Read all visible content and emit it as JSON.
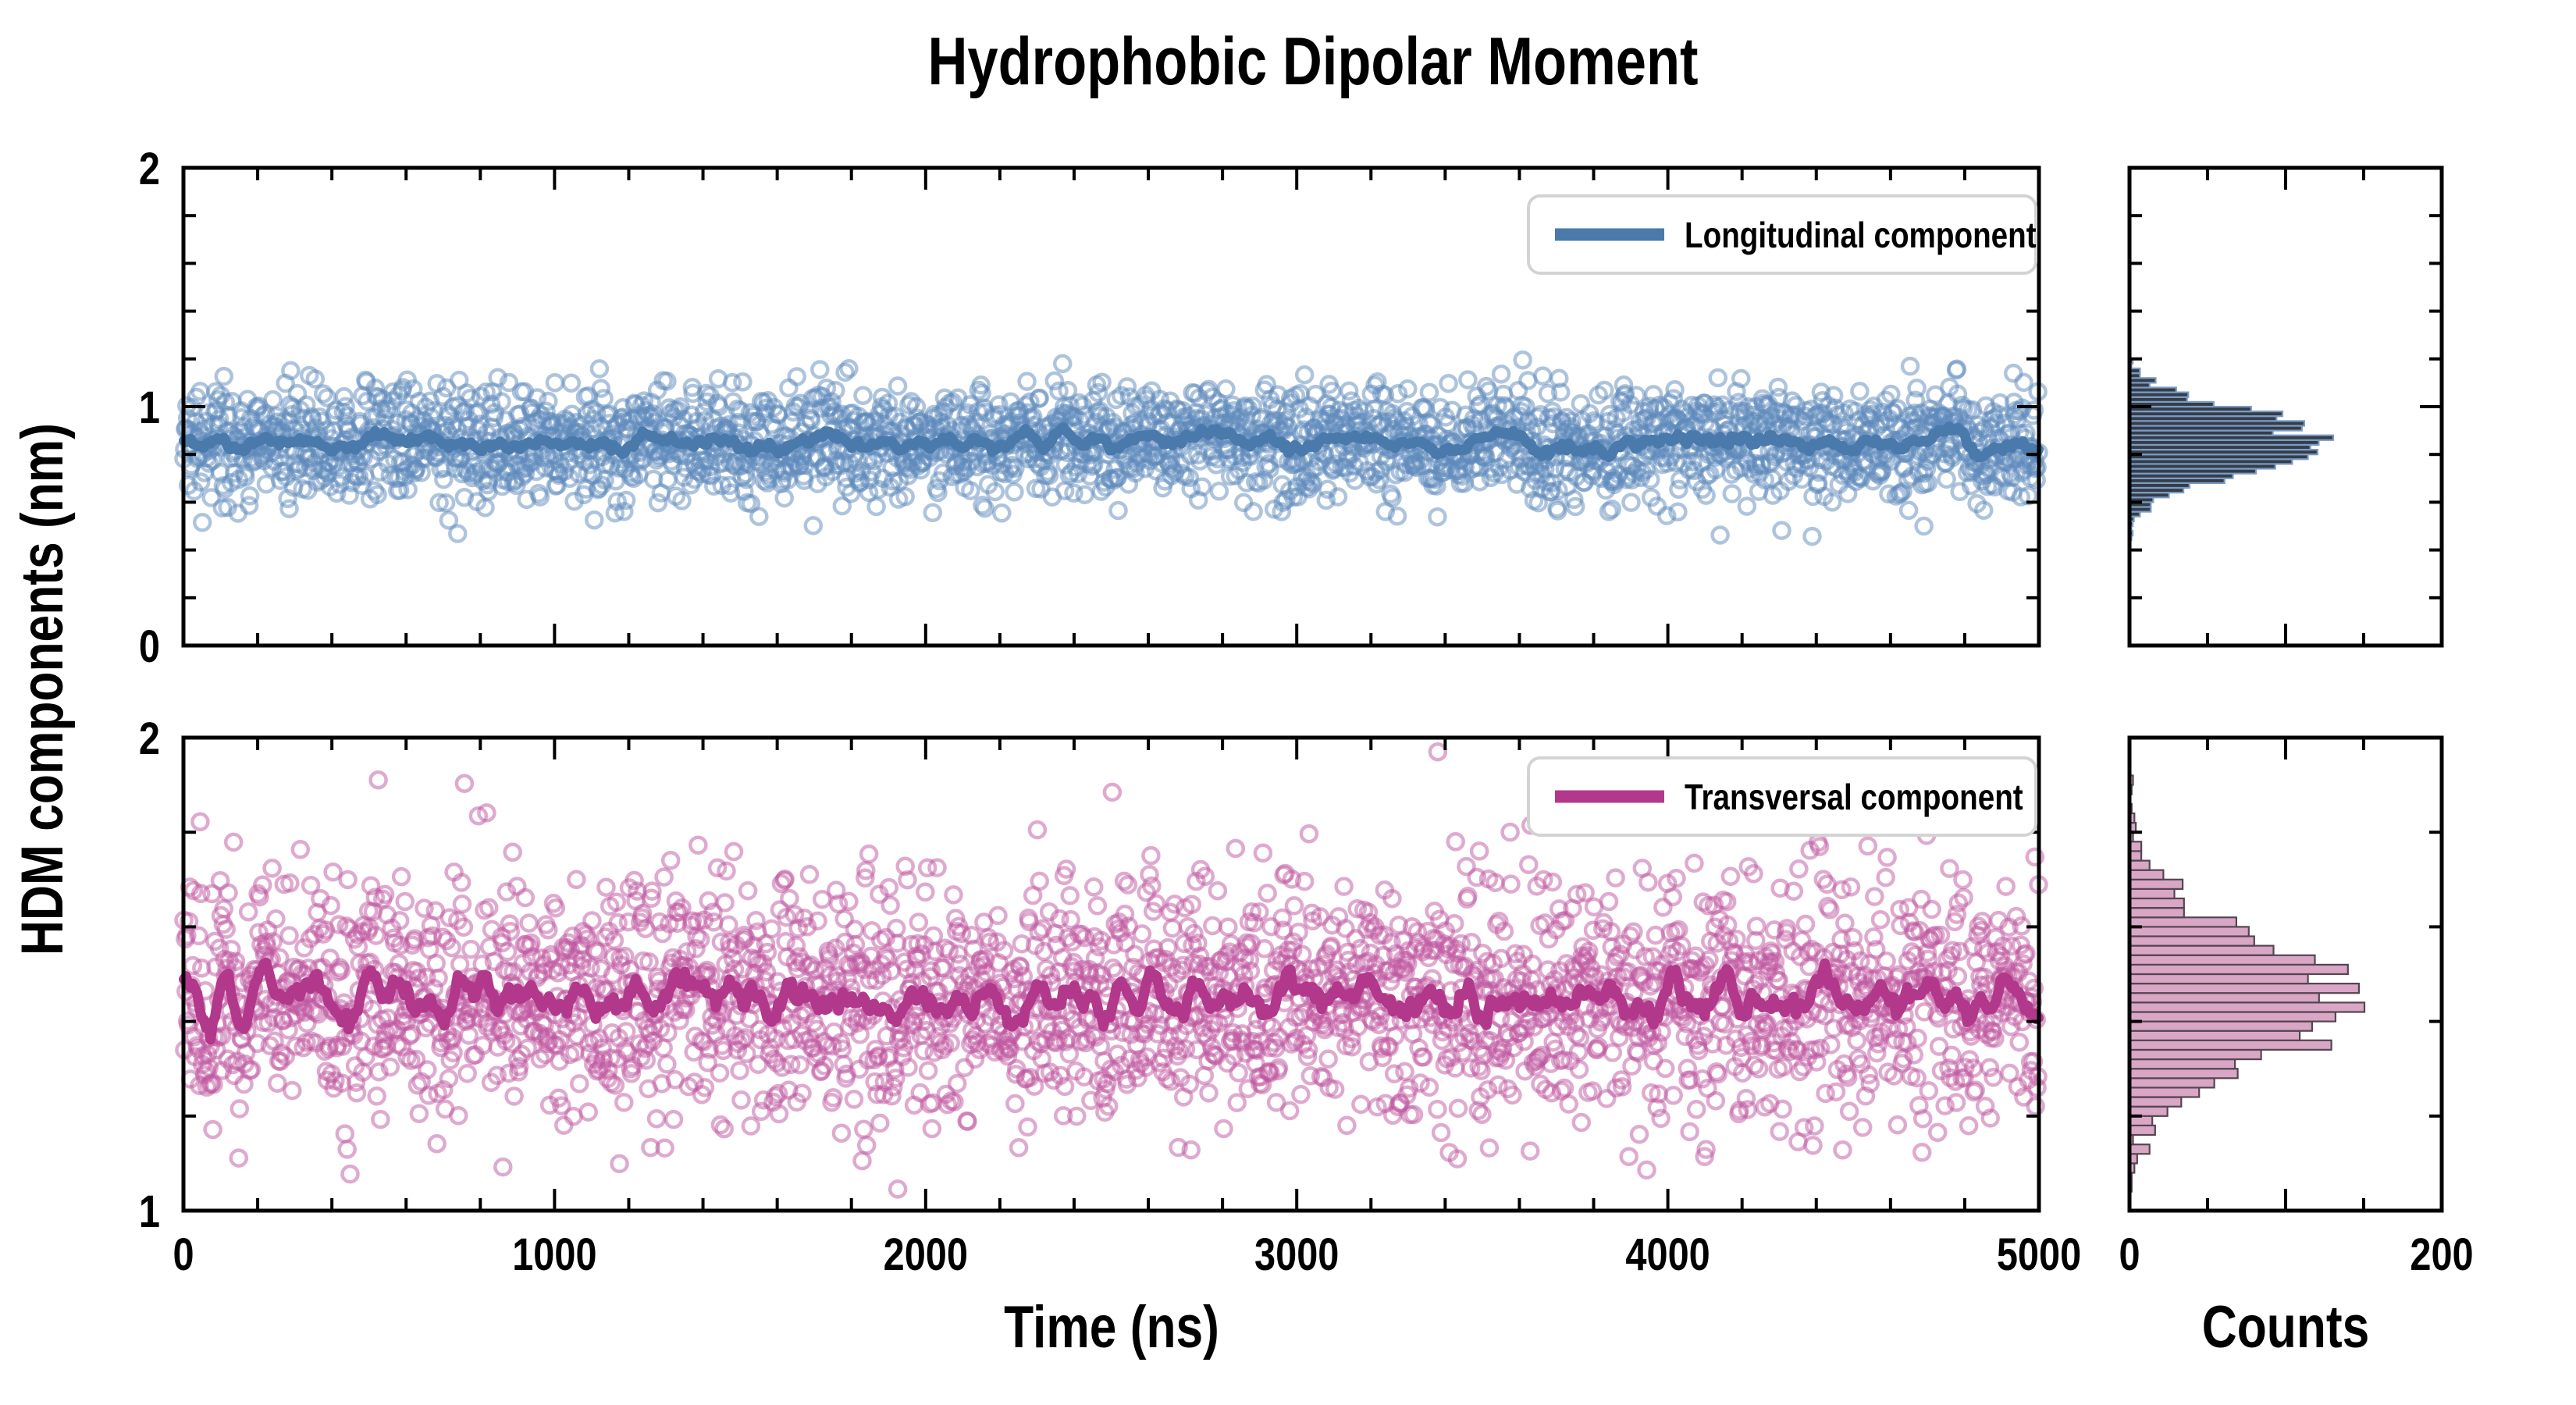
{
  "figure": {
    "title": "Hydrophobic Dipolar Moment",
    "y_axis_label": "HDM components (nm)",
    "x_axis_label_time": "Time (ns)",
    "x_axis_label_counts": "Counts",
    "background": "#ffffff"
  },
  "legends": {
    "longitudinal": "Longitudinal component",
    "transversal": "Transversal component"
  },
  "colors": {
    "longitudinal_line": "#4a7aac",
    "longitudinal_marker": "#5e8abb",
    "longitudinal_hist_fill": "#353d49",
    "longitudinal_hist_edge": "#7b9cc2",
    "transversal_line": "#b2388b",
    "transversal_marker": "#c0569f",
    "transversal_hist_fill": "#d9a6c6",
    "transversal_hist_edge": "#544650",
    "axis": "#000000",
    "legend_border": "#d3d3d3",
    "background": "#ffffff"
  },
  "chart_data": [
    {
      "id": "longitudinal_timeseries",
      "type": "scatter",
      "legend": "Longitudinal component",
      "xlabel": "Time (ns)",
      "x_range": [
        0,
        5000
      ],
      "x_major_ticks": [
        0,
        1000,
        2000,
        3000,
        4000,
        5000
      ],
      "x_minor_step": 200,
      "y_range": [
        0,
        2
      ],
      "y_major_ticks": [
        0,
        1,
        2
      ],
      "y_minor_step": 0.2,
      "n_points": 2500,
      "mean_nm": 0.85,
      "sd_nm": 0.12,
      "clip_nm": [
        0.45,
        1.2
      ],
      "smooth_window": 26,
      "seed": 20,
      "outliers": [
        [
          4690,
          0.5
        ]
      ],
      "marker": "open-circle",
      "line": "running-average",
      "grid": false
    },
    {
      "id": "longitudinal_histogram",
      "type": "histogram",
      "orientation": "horizontal",
      "source": "longitudinal_timeseries",
      "count_range": [
        0,
        200
      ],
      "count_labeled_ticks": [
        0,
        200
      ],
      "count_minor_ticks": [
        50,
        100,
        150
      ],
      "bin_width_nm": 0.02,
      "peak_count": 130,
      "peak_at_nm": 0.85
    },
    {
      "id": "transversal_timeseries",
      "type": "scatter",
      "legend": "Transversal component",
      "xlabel": "Time (ns)",
      "x_range": [
        0,
        5000
      ],
      "x_major_ticks": [
        0,
        1000,
        2000,
        3000,
        4000,
        5000
      ],
      "x_minor_step": 200,
      "y_range": [
        1,
        2
      ],
      "y_major_ticks": [
        1,
        2
      ],
      "y_minor_step": 0.2,
      "n_points": 2500,
      "mean_nm": 1.45,
      "sd_nm": 0.13,
      "clip_nm": [
        1.04,
        1.99
      ],
      "smooth_window": 22,
      "seed": 77,
      "outliers": [
        [
          3380,
          1.97
        ],
        [
          3428,
          1.78
        ],
        [
          3492,
          1.76
        ]
      ],
      "marker": "open-circle",
      "line": "running-average",
      "grid": false
    },
    {
      "id": "transversal_histogram",
      "type": "histogram",
      "orientation": "horizontal",
      "source": "transversal_timeseries",
      "count_range": [
        0,
        200
      ],
      "count_labeled_ticks": [
        0,
        200
      ],
      "count_minor_ticks": [
        50,
        100,
        150
      ],
      "bin_width_nm": 0.02,
      "peak_count": 150,
      "peak_at_nm": 1.45
    }
  ]
}
